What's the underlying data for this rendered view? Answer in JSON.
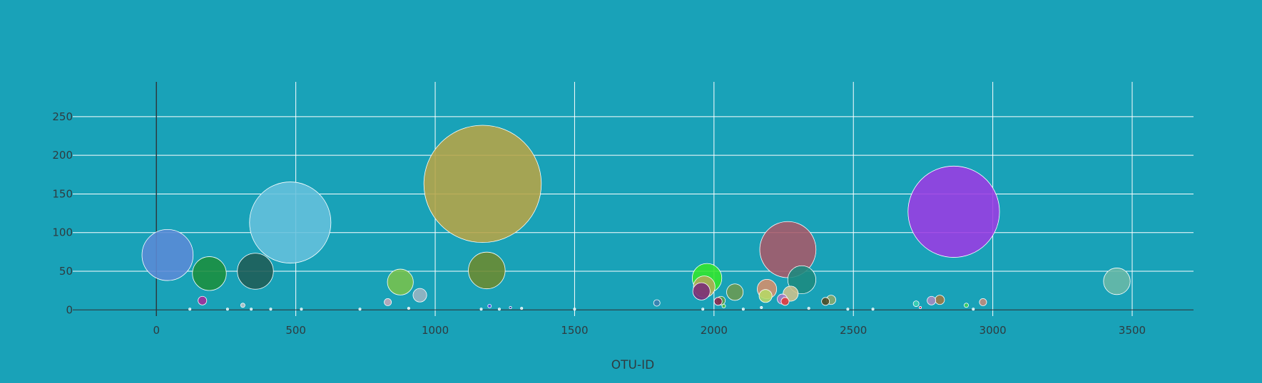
{
  "colors": {
    "background": "#19a2b8",
    "grid": "#ffffff",
    "zero_line": "#2d3b40",
    "text": "#2f3b40"
  },
  "chart_data": {
    "type": "scatter",
    "variant": "bubble",
    "title": "",
    "xlabel": "OTU-ID",
    "ylabel": "",
    "xlim": [
      -300,
      3720
    ],
    "ylim": [
      -8,
      295
    ],
    "x_ticks": [
      0,
      500,
      1000,
      1500,
      2000,
      2500,
      3000,
      3500
    ],
    "x_tick_labels": [
      "0",
      "500",
      "1000",
      "1500",
      "2000",
      "2500",
      "3000",
      "3500"
    ],
    "y_ticks": [
      0,
      50,
      100,
      150,
      200,
      250
    ],
    "y_tick_labels": [
      "0",
      "50",
      "100",
      "150",
      "200",
      "250"
    ],
    "grid": true,
    "legend": "none",
    "size_rule": "bubble diameter proportional to value",
    "points": [
      {
        "x": 40,
        "y": 71,
        "color": "#5b8ad6"
      },
      {
        "x": 165,
        "y": 12,
        "color": "#a52a9a"
      },
      {
        "x": 190,
        "y": 47,
        "color": "#1b8e3c"
      },
      {
        "x": 355,
        "y": 50,
        "color": "#1f5c55"
      },
      {
        "x": 480,
        "y": 113,
        "color": "#65c0dc"
      },
      {
        "x": 310,
        "y": 6,
        "color": "#b9c3c6"
      },
      {
        "x": 830,
        "y": 10,
        "color": "#c6a9b9"
      },
      {
        "x": 875,
        "y": 36,
        "color": "#79c24a"
      },
      {
        "x": 945,
        "y": 19,
        "color": "#9db4c2"
      },
      {
        "x": 1170,
        "y": 163,
        "color": "#b7a446"
      },
      {
        "x": 1185,
        "y": 51,
        "color": "#6c8a2e"
      },
      {
        "x": 1195,
        "y": 5,
        "color": "#5050e8"
      },
      {
        "x": 1270,
        "y": 3,
        "color": "#2020a0"
      },
      {
        "x": 1795,
        "y": 9,
        "color": "#3c7fb0"
      },
      {
        "x": 1975,
        "y": 41,
        "color": "#33e62b"
      },
      {
        "x": 1965,
        "y": 30,
        "color": "#b4aa58"
      },
      {
        "x": 1955,
        "y": 24,
        "color": "#7a2a78"
      },
      {
        "x": 2015,
        "y": 11,
        "color": "#8a2450"
      },
      {
        "x": 2025,
        "y": 12,
        "color": "#5a9c46"
      },
      {
        "x": 2035,
        "y": 5,
        "color": "#48c040"
      },
      {
        "x": 2075,
        "y": 23,
        "color": "#6c9a50"
      },
      {
        "x": 2190,
        "y": 27,
        "color": "#d88e6a"
      },
      {
        "x": 2185,
        "y": 18,
        "color": "#b6d866"
      },
      {
        "x": 2245,
        "y": 14,
        "color": "#aa7ac4"
      },
      {
        "x": 2255,
        "y": 11,
        "color": "#e03a3a"
      },
      {
        "x": 2275,
        "y": 21,
        "color": "#cfc18c"
      },
      {
        "x": 2265,
        "y": 78,
        "color": "#a95868"
      },
      {
        "x": 2315,
        "y": 39,
        "color": "#1d8a7e"
      },
      {
        "x": 2400,
        "y": 11,
        "color": "#4e4a22"
      },
      {
        "x": 2420,
        "y": 13,
        "color": "#8aa86a"
      },
      {
        "x": 2725,
        "y": 8,
        "color": "#3ad0b2"
      },
      {
        "x": 2740,
        "y": 3,
        "color": "#e0205a"
      },
      {
        "x": 2780,
        "y": 12,
        "color": "#a88ac0"
      },
      {
        "x": 2810,
        "y": 13,
        "color": "#a07840"
      },
      {
        "x": 2860,
        "y": 127,
        "color": "#9c3ae2"
      },
      {
        "x": 2905,
        "y": 6,
        "color": "#3cd058"
      },
      {
        "x": 2965,
        "y": 10,
        "color": "#c48a7a"
      },
      {
        "x": 3445,
        "y": 37,
        "color": "#6ab8a6"
      },
      {
        "x": 120,
        "y": 1,
        "color": "#cfeef2"
      },
      {
        "x": 255,
        "y": 1,
        "color": "#cfeef2"
      },
      {
        "x": 340,
        "y": 1,
        "color": "#cfeef2"
      },
      {
        "x": 410,
        "y": 1,
        "color": "#cfeef2"
      },
      {
        "x": 520,
        "y": 1,
        "color": "#cfeef2"
      },
      {
        "x": 730,
        "y": 1,
        "color": "#cfeef2"
      },
      {
        "x": 905,
        "y": 2,
        "color": "#e8f4f6"
      },
      {
        "x": 1165,
        "y": 1,
        "color": "#cfeef2"
      },
      {
        "x": 1230,
        "y": 1,
        "color": "#cfeef2"
      },
      {
        "x": 1310,
        "y": 2,
        "color": "#cfeef2"
      },
      {
        "x": 1500,
        "y": 1,
        "color": "#cfeef2"
      },
      {
        "x": 1960,
        "y": 1,
        "color": "#cfeef2"
      },
      {
        "x": 2105,
        "y": 1,
        "color": "#cfeef2"
      },
      {
        "x": 2170,
        "y": 3,
        "color": "#cfeef2"
      },
      {
        "x": 2340,
        "y": 2,
        "color": "#cfeef2"
      },
      {
        "x": 2480,
        "y": 1,
        "color": "#cfeef2"
      },
      {
        "x": 2570,
        "y": 1,
        "color": "#cfeef2"
      },
      {
        "x": 2930,
        "y": 1,
        "color": "#cfeef2"
      }
    ]
  }
}
